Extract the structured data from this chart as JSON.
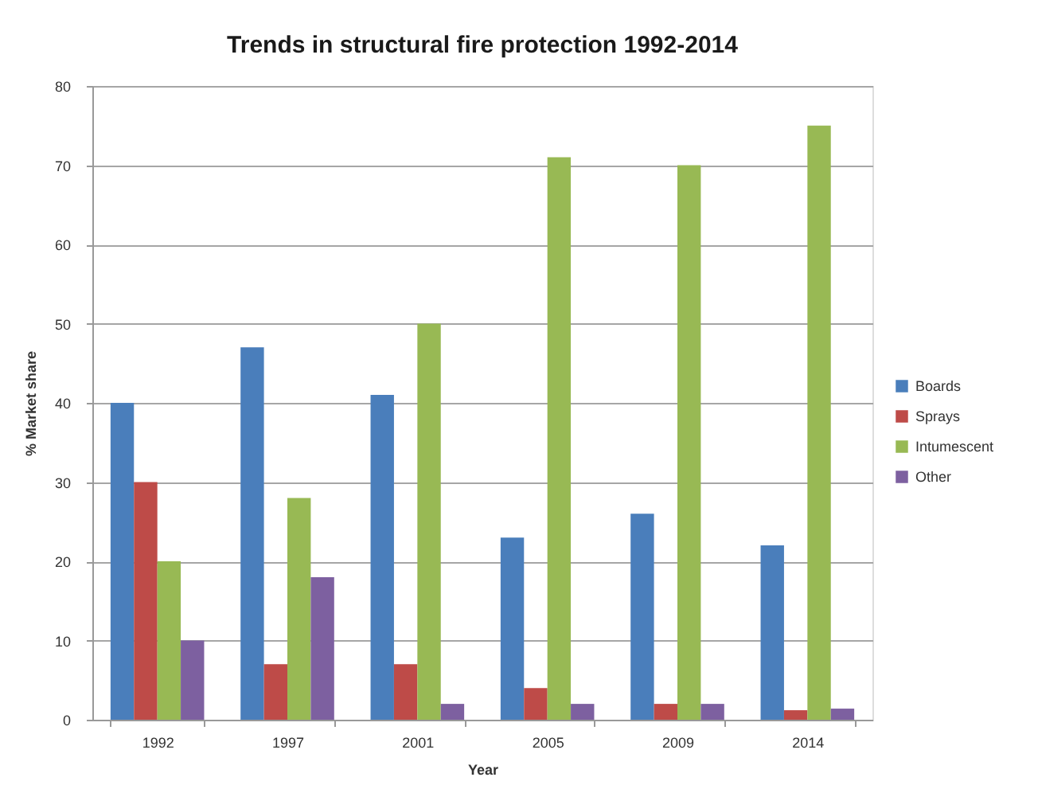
{
  "chart_data": {
    "type": "bar",
    "title": "Trends in structural fire protection 1992-2014",
    "xlabel": "Year",
    "ylabel": "% Market share",
    "categories": [
      "1992",
      "1997",
      "2001",
      "2005",
      "2009",
      "2014"
    ],
    "series": [
      {
        "name": "Boards",
        "color": "#4a7ebb",
        "values": [
          40,
          47,
          41,
          23,
          26,
          22
        ]
      },
      {
        "name": "Sprays",
        "color": "#be4b48",
        "values": [
          30,
          7,
          7,
          4,
          2,
          1.2
        ]
      },
      {
        "name": "Intumescent",
        "color": "#98b954",
        "values": [
          20,
          28,
          50,
          71,
          70,
          75
        ]
      },
      {
        "name": "Other",
        "color": "#7d60a0",
        "values": [
          10,
          18,
          2,
          2,
          2,
          1.4
        ]
      }
    ],
    "ylim": [
      0,
      80
    ],
    "yticks": [
      0,
      10,
      20,
      30,
      40,
      50,
      60,
      70,
      80
    ],
    "grid": "y",
    "legend": "right"
  }
}
